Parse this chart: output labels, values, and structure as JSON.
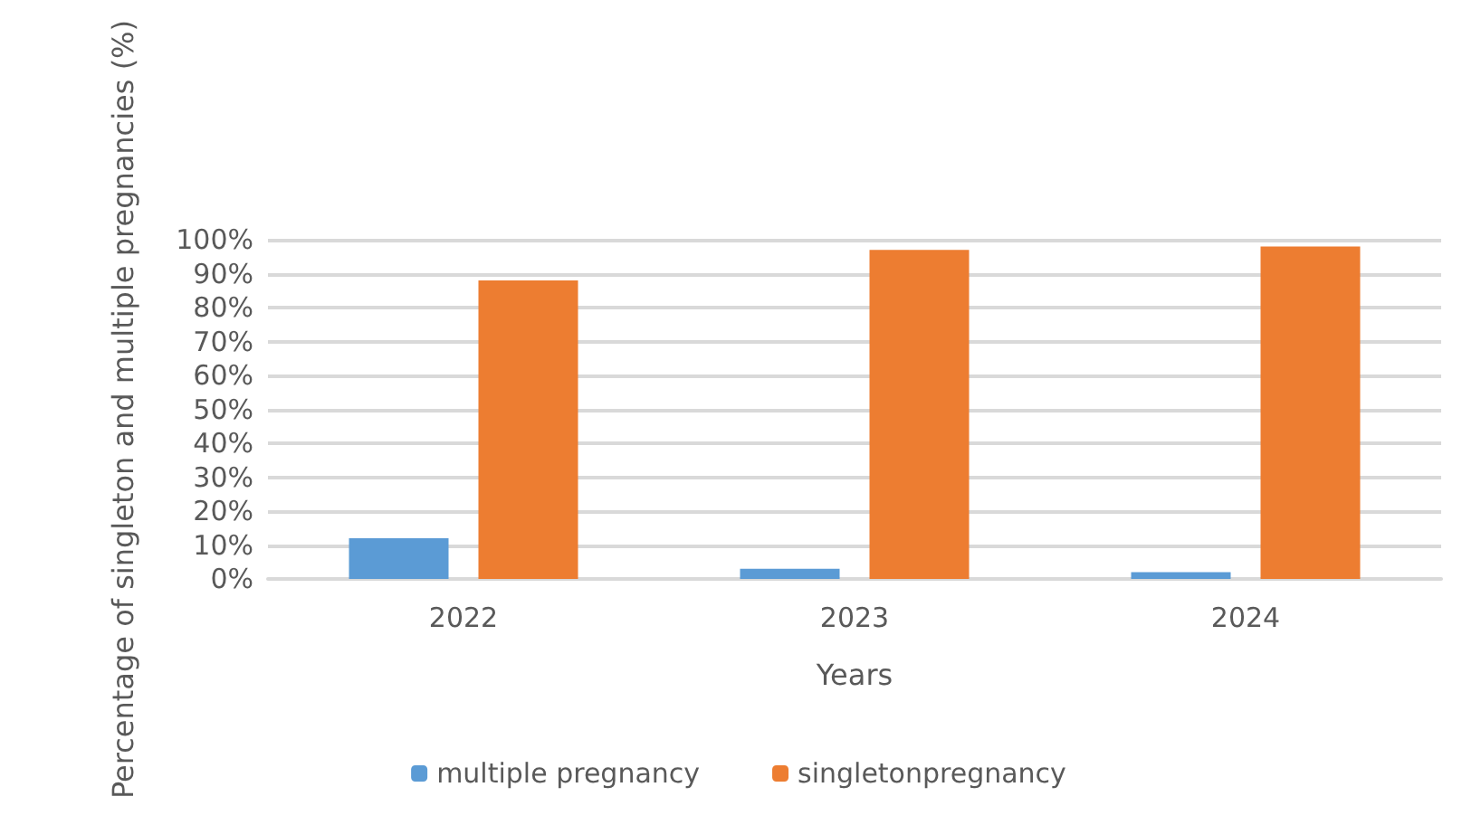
{
  "chart_data": {
    "type": "bar",
    "xlabel": "Years",
    "ylabel": "Percentage of singleton and multiple pregnancies (%)",
    "categories": [
      "2022",
      "2023",
      "2024"
    ],
    "series": [
      {
        "name": "multiple pregnancy",
        "color": "#5b9bd5",
        "values": [
          12,
          3,
          2
        ]
      },
      {
        "name": "singletonpregnancy",
        "color": "#ed7d31",
        "values": [
          88,
          97,
          98
        ]
      }
    ],
    "ylim": [
      0,
      100
    ],
    "yticks": [
      {
        "value": 0,
        "label": "0%"
      },
      {
        "value": 10,
        "label": "10%"
      },
      {
        "value": 20,
        "label": "20%"
      },
      {
        "value": 30,
        "label": "30%"
      },
      {
        "value": 40,
        "label": "40%"
      },
      {
        "value": 50,
        "label": "50%"
      },
      {
        "value": 60,
        "label": "60%"
      },
      {
        "value": 70,
        "label": "70%"
      },
      {
        "value": 80,
        "label": "80%"
      },
      {
        "value": 90,
        "label": "90%"
      },
      {
        "value": 100,
        "label": "100%"
      }
    ],
    "grid": "y",
    "legend": "bottom"
  }
}
